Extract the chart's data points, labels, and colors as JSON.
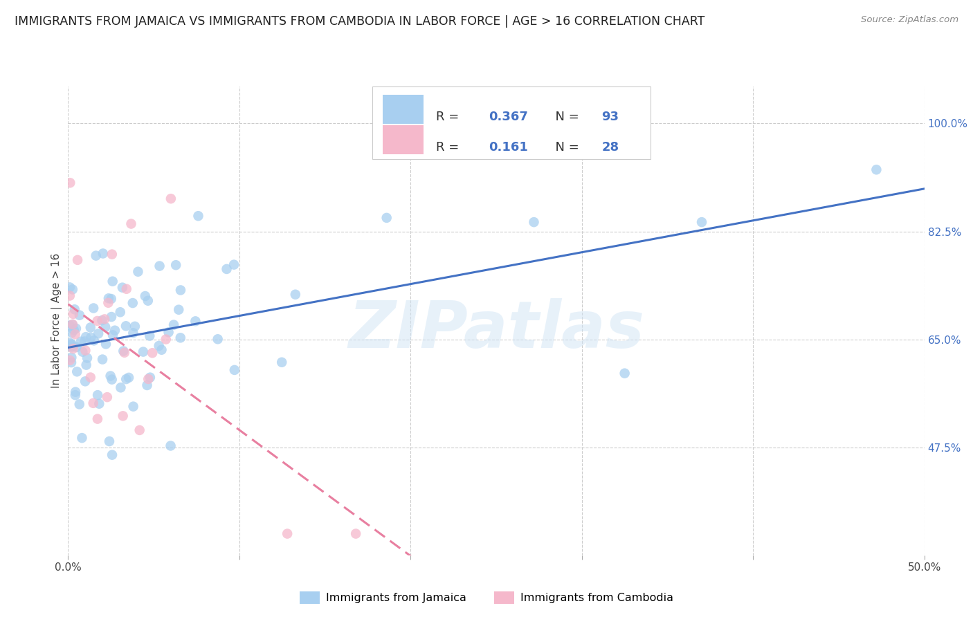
{
  "title": "IMMIGRANTS FROM JAMAICA VS IMMIGRANTS FROM CAMBODIA IN LABOR FORCE | AGE > 16 CORRELATION CHART",
  "source": "Source: ZipAtlas.com",
  "ylabel_label": "In Labor Force | Age > 16",
  "x_min": 0.0,
  "x_max": 0.5,
  "y_min": 0.3,
  "y_max": 1.06,
  "x_ticks": [
    0.0,
    0.1,
    0.2,
    0.3,
    0.4,
    0.5
  ],
  "x_tick_labels": [
    "0.0%",
    "",
    "",
    "",
    "",
    "50.0%"
  ],
  "y_ticks": [
    0.475,
    0.65,
    0.825,
    1.0
  ],
  "y_tick_labels": [
    "47.5%",
    "65.0%",
    "82.5%",
    "100.0%"
  ],
  "grid_color": "#cccccc",
  "background_color": "#ffffff",
  "watermark_text": "ZIPatlas",
  "jamaica_color": "#a8cff0",
  "cambodia_color": "#f5b8cb",
  "jamaica_line_color": "#4472c4",
  "cambodia_line_color": "#e87fa0",
  "jamaica_R": 0.367,
  "jamaica_N": 93,
  "cambodia_R": 0.161,
  "cambodia_N": 28,
  "text_color_dark": "#222222",
  "text_color_blue": "#4472c4",
  "text_color_source": "#888888",
  "legend_R_color": "#333333",
  "legend_val_color": "#4472c4",
  "title_fontsize": 12.5,
  "axis_label_fontsize": 11,
  "tick_fontsize": 11
}
